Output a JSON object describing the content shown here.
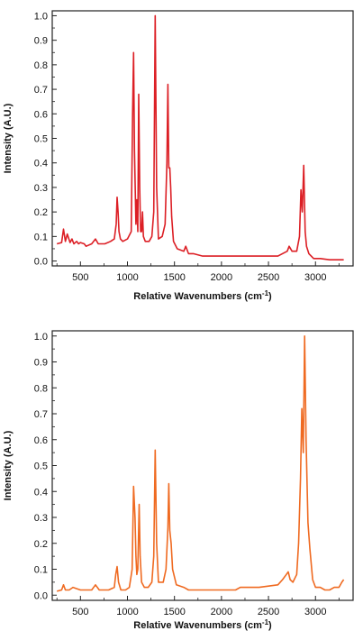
{
  "chart_data": [
    {
      "type": "line",
      "xlabel": "Relative Wavenumbers (cm",
      "xlabel_sup": "-1",
      "xlabel_tail": ")",
      "ylabel": "Intensity (A.U.)",
      "xlim": [
        200,
        3400
      ],
      "ylim": [
        -0.02,
        1.02
      ],
      "xticks": [
        500,
        1000,
        1500,
        2000,
        2500,
        3000
      ],
      "yticks": [
        0.0,
        0.1,
        0.2,
        0.3,
        0.4,
        0.5,
        0.6,
        0.7,
        0.8,
        0.9,
        1.0
      ],
      "color": "#dc1f25",
      "series": [
        {
          "x": [
            250,
            300,
            320,
            340,
            360,
            390,
            410,
            430,
            460,
            480,
            500,
            540,
            560,
            620,
            660,
            690,
            760,
            820,
            860,
            880,
            890,
            900,
            910,
            925,
            950,
            1000,
            1040,
            1055,
            1065,
            1075,
            1090,
            1100,
            1110,
            1120,
            1130,
            1140,
            1150,
            1160,
            1170,
            1190,
            1230,
            1260,
            1280,
            1295,
            1310,
            1330,
            1370,
            1400,
            1420,
            1430,
            1440,
            1450,
            1460,
            1470,
            1490,
            1530,
            1600,
            1620,
            1650,
            1700,
            1800,
            2000,
            2200,
            2400,
            2600,
            2700,
            2720,
            2750,
            2800,
            2830,
            2845,
            2860,
            2875,
            2890,
            2905,
            2930,
            2980,
            3050,
            3150,
            3300
          ],
          "y": [
            0.07,
            0.075,
            0.13,
            0.08,
            0.11,
            0.075,
            0.09,
            0.07,
            0.08,
            0.07,
            0.075,
            0.07,
            0.06,
            0.07,
            0.09,
            0.07,
            0.07,
            0.08,
            0.09,
            0.15,
            0.26,
            0.2,
            0.12,
            0.09,
            0.08,
            0.09,
            0.12,
            0.6,
            0.85,
            0.45,
            0.15,
            0.25,
            0.12,
            0.68,
            0.3,
            0.12,
            0.12,
            0.2,
            0.1,
            0.08,
            0.08,
            0.1,
            0.2,
            1.0,
            0.3,
            0.09,
            0.1,
            0.15,
            0.4,
            0.72,
            0.38,
            0.38,
            0.3,
            0.18,
            0.08,
            0.05,
            0.04,
            0.06,
            0.03,
            0.03,
            0.02,
            0.02,
            0.02,
            0.02,
            0.02,
            0.04,
            0.06,
            0.04,
            0.04,
            0.1,
            0.29,
            0.2,
            0.39,
            0.12,
            0.06,
            0.03,
            0.01,
            0.01,
            0.005,
            0.005
          ]
        }
      ]
    },
    {
      "type": "line",
      "xlabel": "Relative Wavenumbers (cm",
      "xlabel_sup": "-1",
      "xlabel_tail": ")",
      "ylabel": "Intensity (A.U.)",
      "xlim": [
        200,
        3400
      ],
      "ylim": [
        -0.02,
        1.02
      ],
      "xticks": [
        500,
        1000,
        1500,
        2000,
        2500,
        3000
      ],
      "yticks": [
        0.0,
        0.1,
        0.2,
        0.3,
        0.4,
        0.5,
        0.6,
        0.7,
        0.8,
        0.9,
        1.0
      ],
      "color": "#ef6a21",
      "series": [
        {
          "x": [
            250,
            300,
            320,
            340,
            380,
            420,
            500,
            560,
            620,
            660,
            700,
            800,
            860,
            875,
            890,
            905,
            930,
            980,
            1020,
            1050,
            1065,
            1080,
            1090,
            1100,
            1110,
            1125,
            1135,
            1150,
            1180,
            1220,
            1260,
            1280,
            1295,
            1310,
            1330,
            1380,
            1410,
            1430,
            1440,
            1450,
            1465,
            1480,
            1520,
            1600,
            1650,
            1800,
            2000,
            2150,
            2200,
            2400,
            2600,
            2650,
            2690,
            2710,
            2730,
            2760,
            2800,
            2820,
            2840,
            2855,
            2870,
            2885,
            2900,
            2920,
            2940,
            2970,
            3000,
            3050,
            3100,
            3150,
            3200,
            3250,
            3280,
            3300
          ],
          "y": [
            0.015,
            0.02,
            0.04,
            0.02,
            0.02,
            0.03,
            0.02,
            0.02,
            0.02,
            0.04,
            0.02,
            0.02,
            0.03,
            0.08,
            0.11,
            0.05,
            0.02,
            0.02,
            0.03,
            0.1,
            0.42,
            0.3,
            0.15,
            0.08,
            0.1,
            0.35,
            0.15,
            0.05,
            0.03,
            0.03,
            0.05,
            0.15,
            0.56,
            0.2,
            0.05,
            0.05,
            0.1,
            0.26,
            0.43,
            0.25,
            0.2,
            0.1,
            0.04,
            0.03,
            0.02,
            0.02,
            0.02,
            0.02,
            0.03,
            0.03,
            0.04,
            0.06,
            0.08,
            0.09,
            0.06,
            0.05,
            0.08,
            0.2,
            0.45,
            0.72,
            0.55,
            1.0,
            0.6,
            0.28,
            0.18,
            0.06,
            0.03,
            0.03,
            0.02,
            0.02,
            0.03,
            0.03,
            0.05,
            0.06
          ]
        }
      ]
    }
  ]
}
